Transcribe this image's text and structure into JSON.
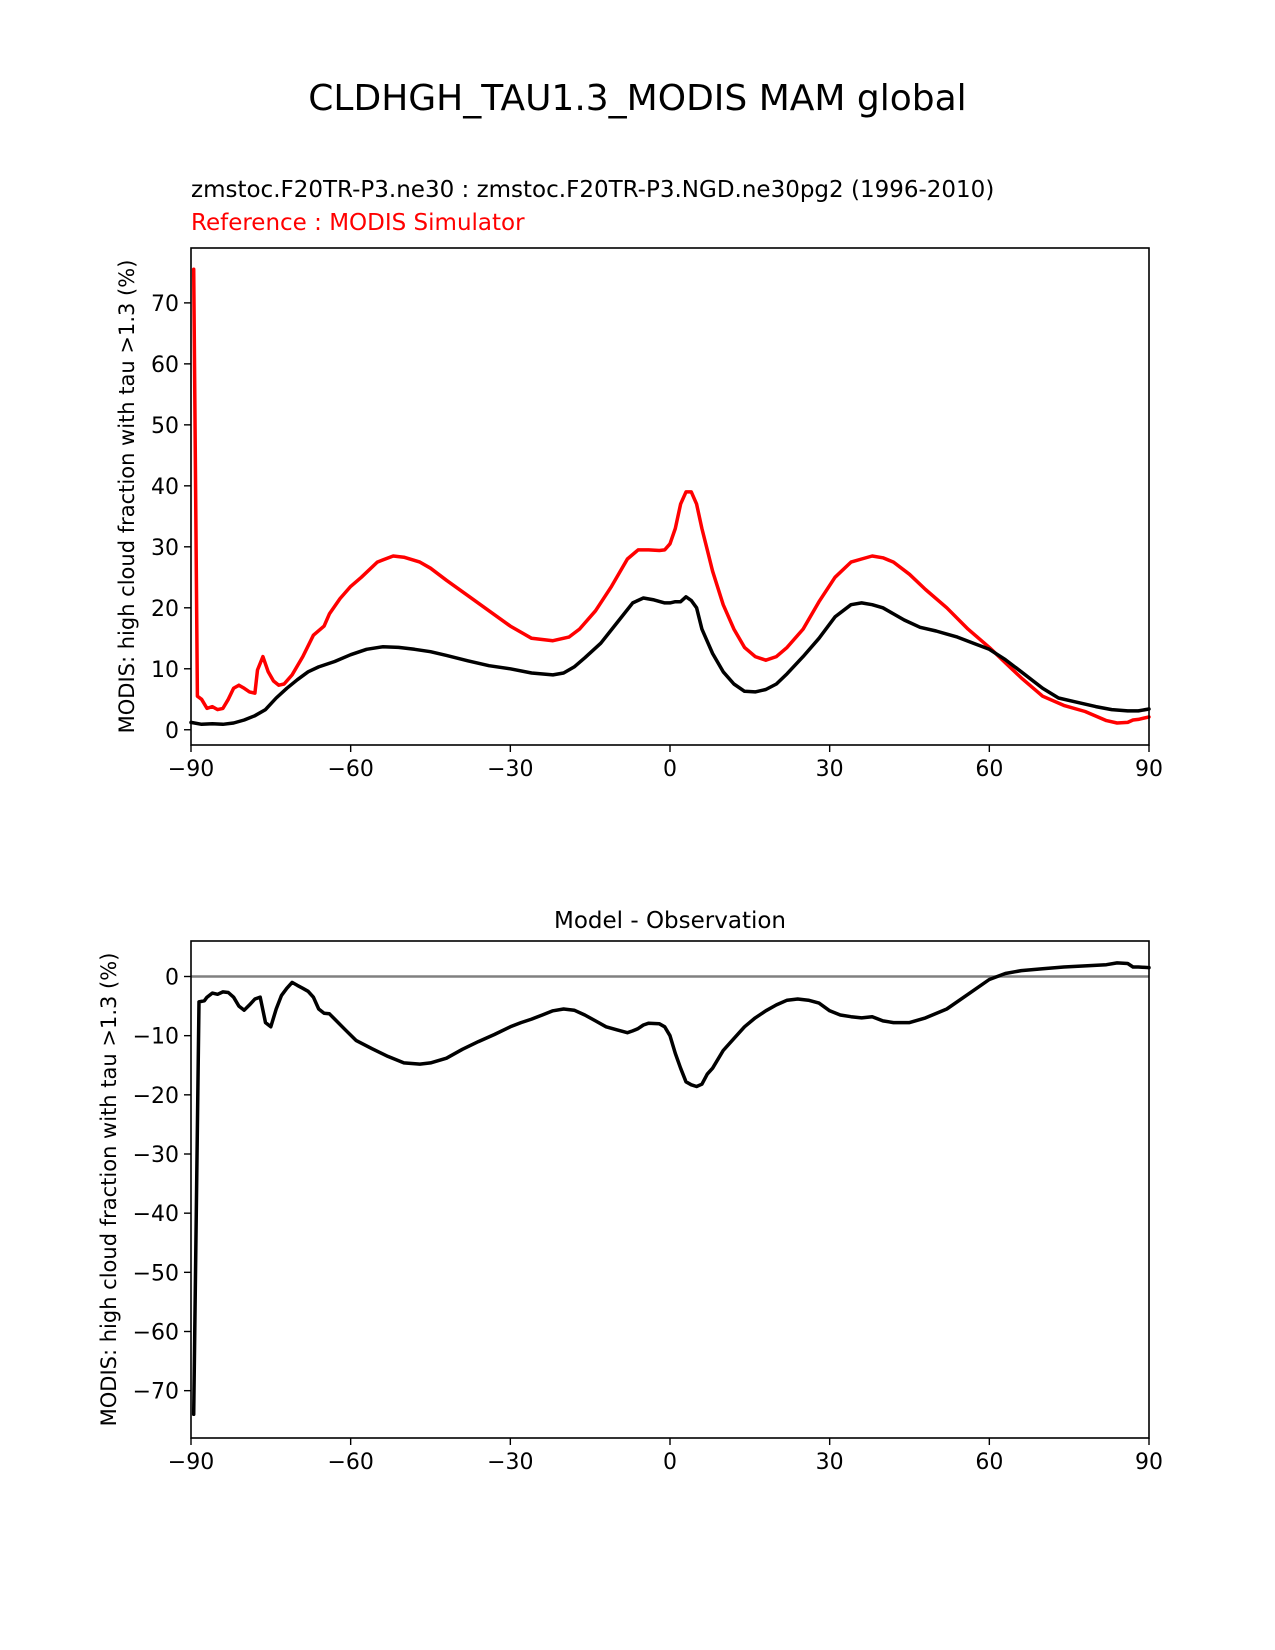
{
  "figure": {
    "suptitle": "CLDHGH_TAU1.3_MODIS MAM global"
  },
  "colors": {
    "model": "#000000",
    "reference": "#ff0000",
    "zero_line": "#808080"
  },
  "chart_data": [
    {
      "type": "line",
      "title_test": "zmstoc.F20TR-P3.ne30 : zmstoc.F20TR-P3.NGD.ne30pg2 (1996-2010)",
      "title_ref": "Reference : MODIS Simulator",
      "xlabel": "",
      "ylabel": "MODIS: high cloud fraction with tau >1.3 (%)",
      "xlim": [
        -90,
        90
      ],
      "ylim": [
        -2.5,
        79
      ],
      "xticks": [
        -90,
        -60,
        -30,
        0,
        30,
        60,
        90
      ],
      "yticks": [
        0,
        10,
        20,
        30,
        40,
        50,
        60,
        70
      ],
      "grid": false,
      "series": [
        {
          "color": "#ff0000",
          "x": [
            -89.5,
            -88.8,
            -88,
            -87,
            -86,
            -85,
            -84,
            -83,
            -82,
            -81,
            -80,
            -79,
            -78,
            -77.5,
            -76.5,
            -75.5,
            -74.5,
            -73.5,
            -72.5,
            -71,
            -69,
            -67,
            -65,
            -64,
            -62,
            -60,
            -58,
            -55,
            -52,
            -50,
            -47,
            -45,
            -42,
            -38,
            -34,
            -30,
            -26,
            -22,
            -19,
            -17,
            -14,
            -11,
            -8,
            -6,
            -4,
            -2,
            -1,
            0,
            1,
            2,
            3,
            4,
            5,
            6,
            7,
            8,
            10,
            12,
            14,
            16,
            18,
            20,
            22,
            25,
            28,
            31,
            34,
            36,
            38,
            40,
            42,
            45,
            48,
            52,
            56,
            60,
            63,
            66,
            70,
            74,
            78,
            82,
            84,
            86,
            87,
            88,
            90
          ],
          "y": [
            75.5,
            5.5,
            5,
            3.5,
            3.8,
            3.3,
            3.5,
            5,
            6.8,
            7.3,
            6.8,
            6.2,
            6.0,
            9.8,
            12,
            9.5,
            8,
            7.3,
            7.5,
            9,
            12,
            15.5,
            17,
            19,
            21.5,
            23.5,
            25,
            27.5,
            28.5,
            28.3,
            27.5,
            26.5,
            24.5,
            22,
            19.5,
            17,
            15,
            14.6,
            15.2,
            16.5,
            19.5,
            23.5,
            28,
            29.5,
            29.5,
            29.4,
            29.5,
            30.5,
            33,
            37,
            39,
            39,
            37,
            33,
            29.5,
            26,
            20.5,
            16.5,
            13.5,
            12,
            11.4,
            12,
            13.5,
            16.5,
            21,
            25,
            27.5,
            28,
            28.5,
            28.2,
            27.5,
            25.5,
            23,
            20,
            16.5,
            13.5,
            11,
            8.5,
            5.5,
            4,
            3,
            1.5,
            1.1,
            1.2,
            1.6,
            1.7,
            2.1
          ]
        },
        {
          "color": "#000000",
          "x": [
            -90,
            -88,
            -86,
            -84,
            -82,
            -80,
            -78,
            -76,
            -74,
            -72,
            -70,
            -68,
            -66,
            -63,
            -60,
            -57,
            -54,
            -51,
            -48,
            -45,
            -42,
            -38,
            -34,
            -30,
            -26,
            -22,
            -20,
            -18,
            -16,
            -13,
            -10,
            -7,
            -5,
            -3,
            -1,
            0,
            1,
            2,
            3,
            4,
            5,
            6,
            8,
            10,
            12,
            14,
            16,
            18,
            20,
            22,
            25,
            28,
            31,
            34,
            36,
            38,
            40,
            42,
            44,
            47,
            50,
            54,
            57,
            60,
            63,
            66,
            70,
            73,
            76,
            80,
            83,
            86,
            88,
            90
          ],
          "y": [
            1.2,
            0.9,
            1,
            0.9,
            1.1,
            1.6,
            2.3,
            3.3,
            5.2,
            6.8,
            8.2,
            9.5,
            10.3,
            11.2,
            12.3,
            13.2,
            13.6,
            13.5,
            13.2,
            12.8,
            12.2,
            11.3,
            10.5,
            10,
            9.3,
            9,
            9.3,
            10.3,
            11.8,
            14.2,
            17.5,
            20.8,
            21.6,
            21.3,
            20.8,
            20.8,
            21,
            21,
            21.8,
            21.2,
            20,
            16.5,
            12.5,
            9.5,
            7.5,
            6.3,
            6.2,
            6.6,
            7.5,
            9.2,
            12,
            15,
            18.5,
            20.5,
            20.8,
            20.5,
            20,
            19,
            18,
            16.8,
            16.2,
            15.2,
            14.2,
            13.2,
            11.5,
            9.5,
            6.8,
            5.2,
            4.6,
            3.8,
            3.3,
            3.1,
            3.1,
            3.4
          ]
        }
      ]
    },
    {
      "type": "line",
      "title": "Model - Observation",
      "xlabel": "",
      "ylabel": "MODIS: high cloud fraction with tau >1.3 (%)",
      "xlim": [
        -90,
        90
      ],
      "ylim": [
        -78,
        6
      ],
      "xticks": [
        -90,
        -60,
        -30,
        0,
        30,
        60,
        90
      ],
      "yticks": [
        0,
        -10,
        -20,
        -30,
        -40,
        -50,
        -60,
        -70
      ],
      "grid": false,
      "zero_line": true,
      "series": [
        {
          "color": "#000000",
          "x": [
            -89.5,
            -88.5,
            -87.5,
            -87,
            -86,
            -85,
            -84,
            -83,
            -82,
            -81,
            -80,
            -79,
            -78,
            -77,
            -76,
            -75,
            -74,
            -73,
            -72,
            -71,
            -70,
            -69,
            -68,
            -67,
            -66,
            -65,
            -64,
            -63,
            -61,
            -59,
            -56,
            -53,
            -50,
            -47,
            -45,
            -42,
            -39,
            -36,
            -33,
            -30,
            -28,
            -26,
            -24,
            -22,
            -20,
            -18,
            -16,
            -14,
            -12,
            -10,
            -8,
            -7,
            -6,
            -5,
            -4,
            -2,
            -1,
            0,
            1,
            2,
            3,
            4,
            5,
            6,
            7,
            8,
            10,
            12,
            14,
            16,
            18,
            20,
            22,
            24,
            26,
            28,
            30,
            32,
            34,
            36,
            38,
            40,
            42,
            45,
            48,
            52,
            56,
            60,
            63,
            66,
            70,
            74,
            78,
            82,
            84,
            86,
            87,
            88,
            90
          ],
          "y": [
            -74,
            -4.3,
            -4.1,
            -3.5,
            -2.8,
            -3,
            -2.6,
            -2.7,
            -3.5,
            -5,
            -5.7,
            -4.8,
            -3.8,
            -3.5,
            -7.8,
            -8.5,
            -5.5,
            -3.2,
            -2,
            -1,
            -1.5,
            -2,
            -2.5,
            -3.5,
            -5.5,
            -6.2,
            -6.3,
            -7.2,
            -9,
            -10.8,
            -12.2,
            -13.5,
            -14.6,
            -14.8,
            -14.6,
            -13.8,
            -12.3,
            -11,
            -9.8,
            -8.5,
            -7.8,
            -7.2,
            -6.5,
            -5.8,
            -5.5,
            -5.7,
            -6.5,
            -7.5,
            -8.5,
            -9,
            -9.5,
            -9.2,
            -8.8,
            -8.2,
            -7.9,
            -8,
            -8.5,
            -10,
            -13,
            -15.5,
            -17.8,
            -18.3,
            -18.6,
            -18.2,
            -16.5,
            -15.5,
            -12.5,
            -10.5,
            -8.5,
            -7,
            -5.8,
            -4.8,
            -4,
            -3.8,
            -4,
            -4.5,
            -5.8,
            -6.5,
            -6.8,
            -7,
            -6.8,
            -7.5,
            -7.8,
            -7.8,
            -7,
            -5.5,
            -3,
            -0.5,
            0.5,
            1,
            1.3,
            1.6,
            1.8,
            2,
            2.3,
            2.2,
            1.6,
            1.6,
            1.5
          ]
        }
      ]
    }
  ]
}
